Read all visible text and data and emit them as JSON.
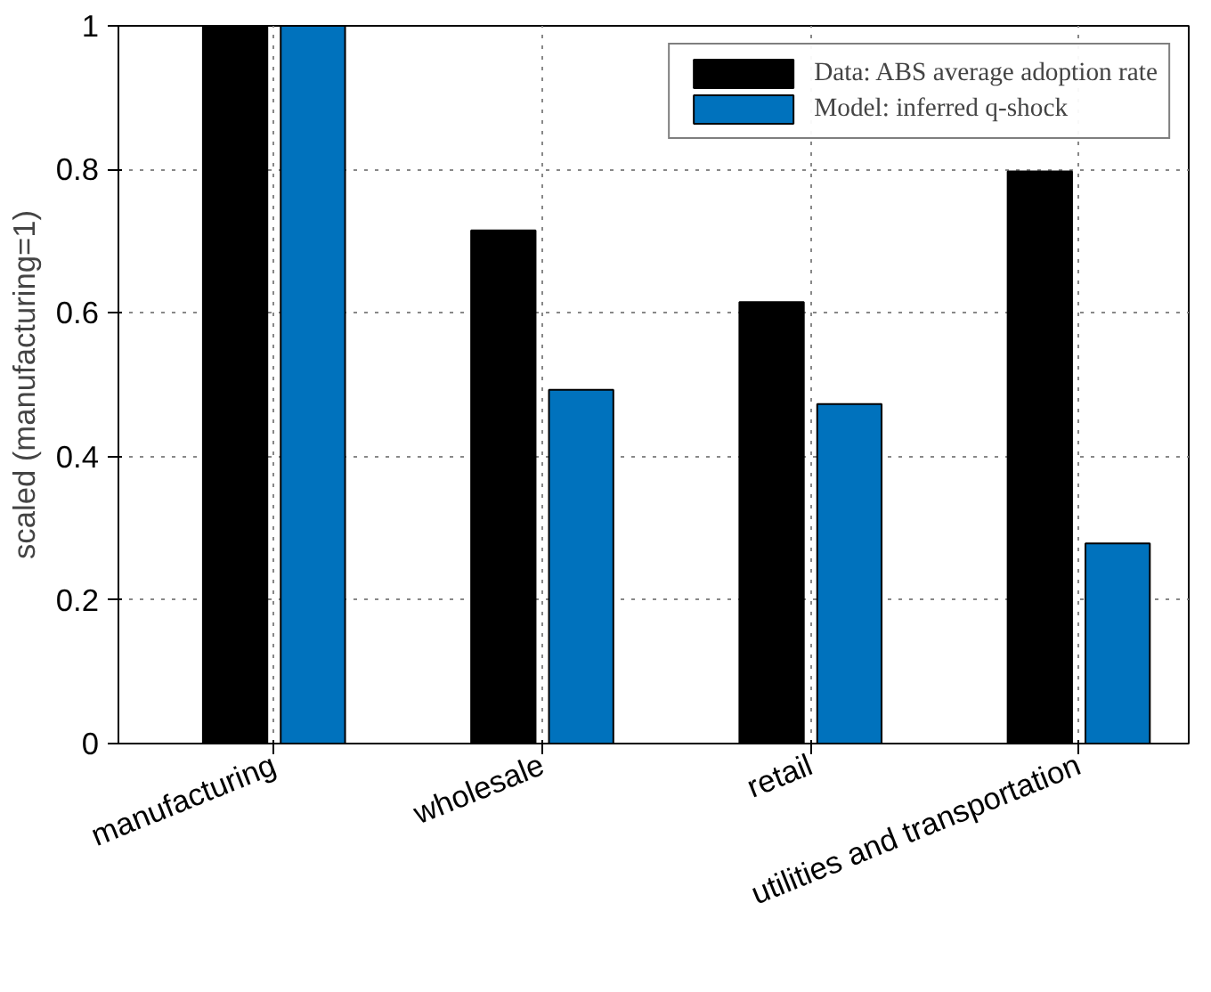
{
  "chart_data": {
    "type": "bar",
    "ylabel": "scaled (manufacturing=1)",
    "categories": [
      "manufacturing",
      "wholesale",
      "retail",
      "utilities and transportation"
    ],
    "series": [
      {
        "name": "Data: ABS average adoption rate",
        "color": "#000000",
        "values": [
          1,
          0.715,
          0.615,
          0.797
        ]
      },
      {
        "name": "Model: inferred q-shock",
        "color": "#0072bd",
        "values": [
          1,
          0.493,
          0.473,
          0.279
        ]
      }
    ],
    "ylim": [
      0,
      1
    ],
    "yticks": [
      0,
      0.2,
      0.4,
      0.6,
      0.8,
      1
    ],
    "grid": true,
    "legend": "top right"
  }
}
